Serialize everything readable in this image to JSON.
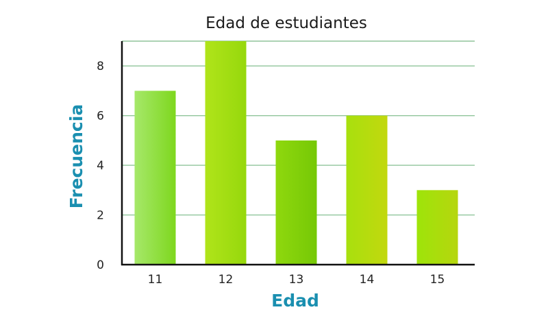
{
  "chart_data": {
    "type": "bar",
    "title": "Edad de estudiantes",
    "xlabel": "Edad",
    "ylabel": "Frecuencia",
    "categories": [
      "11",
      "12",
      "13",
      "14",
      "15"
    ],
    "values": [
      7,
      9,
      5,
      6,
      3
    ],
    "ylim": [
      0,
      9
    ],
    "yticks": [
      "0",
      "2",
      "4",
      "6",
      "8"
    ],
    "grid": true,
    "legend": "none"
  },
  "colors": {
    "axis_label": "#1a8fb0",
    "gridline": "#8fc49a",
    "axis": "#111111",
    "bar_gradients": [
      [
        "#a6e86a",
        "#7ed71e"
      ],
      [
        "#b0e41a",
        "#96d80c"
      ],
      [
        "#8fd80e",
        "#76c806"
      ],
      [
        "#a8e00e",
        "#c2d80e"
      ],
      [
        "#9ee40a",
        "#b6d60e"
      ]
    ]
  }
}
